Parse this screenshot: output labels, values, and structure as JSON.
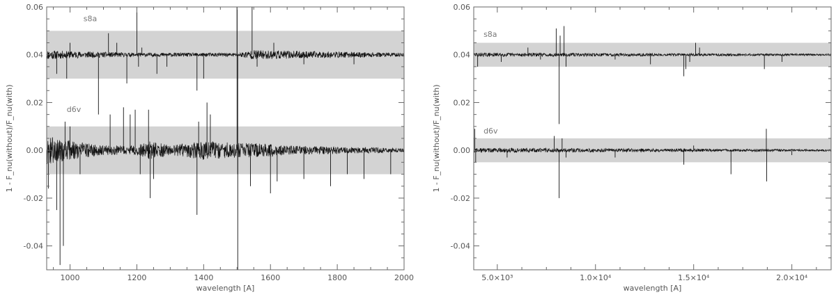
{
  "chart_data": [
    {
      "type": "line",
      "xlabel": "wavelength [A]",
      "ylabel": "1 - F_nu(without)/F_nu(with)",
      "xlim": [
        930,
        2000
      ],
      "ylim": [
        -0.05,
        0.06
      ],
      "x_scale": "linear",
      "xticks": [
        1000,
        1200,
        1400,
        1600,
        1800,
        2000
      ],
      "xtick_labels": [
        "1000",
        "1200",
        "1400",
        "1600",
        "1800",
        "2000"
      ],
      "yticks": [
        -0.04,
        -0.02,
        0.0,
        0.02,
        0.04,
        0.06
      ],
      "ytick_labels": [
        "-0.04",
        "-0.02",
        "0.00",
        "0.02",
        "0.04",
        "0.06"
      ],
      "grid": false,
      "bands": [
        {
          "series": "s8a",
          "ymin": 0.03,
          "ymax": 0.05,
          "color": "#d3d3d3"
        },
        {
          "series": "d6v",
          "ymin": -0.01,
          "ymax": 0.01,
          "color": "#d3d3d3"
        }
      ],
      "series": [
        {
          "name": "s8a",
          "baseline": 0.04,
          "label_at": [
            1040,
            0.054
          ],
          "noise": [
            [
              930,
              0.002
            ],
            [
              1000,
              0.0015
            ],
            [
              1200,
              0.0008
            ],
            [
              1500,
              0.0008
            ],
            [
              1550,
              0.002
            ],
            [
              1700,
              0.0015
            ],
            [
              2000,
              0.0008
            ]
          ],
          "spikes": [
            [
              960,
              -0.008
            ],
            [
              990,
              -0.01
            ],
            [
              1000,
              0.005
            ],
            [
              1085,
              -0.025
            ],
            [
              1115,
              0.009
            ],
            [
              1140,
              0.005
            ],
            [
              1170,
              -0.012
            ],
            [
              1200,
              0.06
            ],
            [
              1205,
              -0.005
            ],
            [
              1215,
              0.003
            ],
            [
              1260,
              -0.008
            ],
            [
              1290,
              -0.005
            ],
            [
              1380,
              -0.015
            ],
            [
              1400,
              -0.01
            ],
            [
              1500,
              0.06
            ],
            [
              1502,
              -0.05
            ],
            [
              1545,
              0.02
            ],
            [
              1560,
              -0.005
            ],
            [
              1610,
              0.005
            ],
            [
              1700,
              -0.004
            ],
            [
              1850,
              -0.004
            ]
          ]
        },
        {
          "name": "d6v",
          "baseline": 0.0,
          "label_at": [
            990,
            0.016
          ],
          "noise": [
            [
              930,
              0.006
            ],
            [
              1000,
              0.004
            ],
            [
              1100,
              0.002
            ],
            [
              1200,
              0.002
            ],
            [
              1240,
              0.004
            ],
            [
              1300,
              0.002
            ],
            [
              1400,
              0.004
            ],
            [
              1500,
              0.003
            ],
            [
              1560,
              0.003
            ],
            [
              1650,
              0.002
            ],
            [
              1800,
              0.0015
            ],
            [
              2000,
              0.0008
            ]
          ],
          "spikes": [
            [
              935,
              -0.016
            ],
            [
              960,
              -0.025
            ],
            [
              970,
              -0.048
            ],
            [
              980,
              -0.04
            ],
            [
              985,
              0.012
            ],
            [
              1000,
              0.01
            ],
            [
              1030,
              -0.01
            ],
            [
              1120,
              0.015
            ],
            [
              1160,
              0.018
            ],
            [
              1180,
              0.015
            ],
            [
              1195,
              0.017
            ],
            [
              1210,
              -0.01
            ],
            [
              1235,
              0.017
            ],
            [
              1240,
              -0.02
            ],
            [
              1250,
              -0.012
            ],
            [
              1380,
              -0.027
            ],
            [
              1385,
              0.012
            ],
            [
              1410,
              0.02
            ],
            [
              1420,
              0.015
            ],
            [
              1500,
              0.06
            ],
            [
              1502,
              -0.05
            ],
            [
              1540,
              -0.015
            ],
            [
              1600,
              -0.018
            ],
            [
              1620,
              -0.013
            ],
            [
              1700,
              -0.012
            ],
            [
              1780,
              -0.015
            ],
            [
              1830,
              -0.01
            ],
            [
              1880,
              -0.012
            ],
            [
              1960,
              -0.01
            ]
          ]
        }
      ]
    },
    {
      "type": "line",
      "xlabel": "wavelength [A]",
      "ylabel": "1 - F_nu(without)/F_nu(with)",
      "xlim": [
        3800,
        22000
      ],
      "ylim": [
        -0.05,
        0.06
      ],
      "x_scale": "linear",
      "xticks": [
        5000,
        10000,
        15000,
        20000
      ],
      "xtick_labels": [
        "5.0×10³",
        "1.0×10⁴",
        "1.5×10⁴",
        "2.0×10⁴"
      ],
      "yticks": [
        -0.04,
        -0.02,
        0.0,
        0.02,
        0.04,
        0.06
      ],
      "ytick_labels": [
        "-0.04",
        "-0.02",
        "0.00",
        "0.02",
        "0.04",
        "0.06"
      ],
      "grid": false,
      "bands": [
        {
          "series": "s8a",
          "ymin": 0.035,
          "ymax": 0.045,
          "color": "#d3d3d3"
        },
        {
          "series": "d6v",
          "ymin": -0.005,
          "ymax": 0.005,
          "color": "#d3d3d3"
        }
      ],
      "series": [
        {
          "name": "s8a",
          "baseline": 0.04,
          "label_at": [
            4300,
            0.0475
          ],
          "noise": [
            [
              3800,
              0.0008
            ],
            [
              22000,
              0.0004
            ]
          ],
          "spikes": [
            [
              4000,
              -0.005
            ],
            [
              5200,
              -0.003
            ],
            [
              6560,
              0.003
            ],
            [
              7200,
              -0.002
            ],
            [
              8000,
              0.011
            ],
            [
              8150,
              -0.029
            ],
            [
              8200,
              0.008
            ],
            [
              8400,
              0.012
            ],
            [
              8500,
              -0.005
            ],
            [
              11000,
              -0.002
            ],
            [
              12800,
              -0.004
            ],
            [
              14500,
              -0.009
            ],
            [
              14600,
              -0.006
            ],
            [
              14800,
              -0.003
            ],
            [
              15100,
              0.005
            ],
            [
              15300,
              0.003
            ],
            [
              18600,
              -0.006
            ],
            [
              19500,
              -0.003
            ]
          ]
        },
        {
          "name": "d6v",
          "baseline": 0.0,
          "label_at": [
            4300,
            0.007
          ],
          "noise": [
            [
              3800,
              0.001
            ],
            [
              22000,
              0.0004
            ]
          ],
          "spikes": [
            [
              3850,
              0.009
            ],
            [
              3900,
              -0.005
            ],
            [
              5500,
              -0.003
            ],
            [
              6500,
              0.001
            ],
            [
              7900,
              0.006
            ],
            [
              8150,
              -0.02
            ],
            [
              8300,
              0.005
            ],
            [
              8500,
              -0.003
            ],
            [
              11000,
              -0.003
            ],
            [
              14500,
              -0.006
            ],
            [
              15000,
              0.002
            ],
            [
              16900,
              -0.01
            ],
            [
              18700,
              0.009
            ],
            [
              18720,
              -0.013
            ],
            [
              20000,
              -0.002
            ]
          ]
        }
      ]
    }
  ]
}
